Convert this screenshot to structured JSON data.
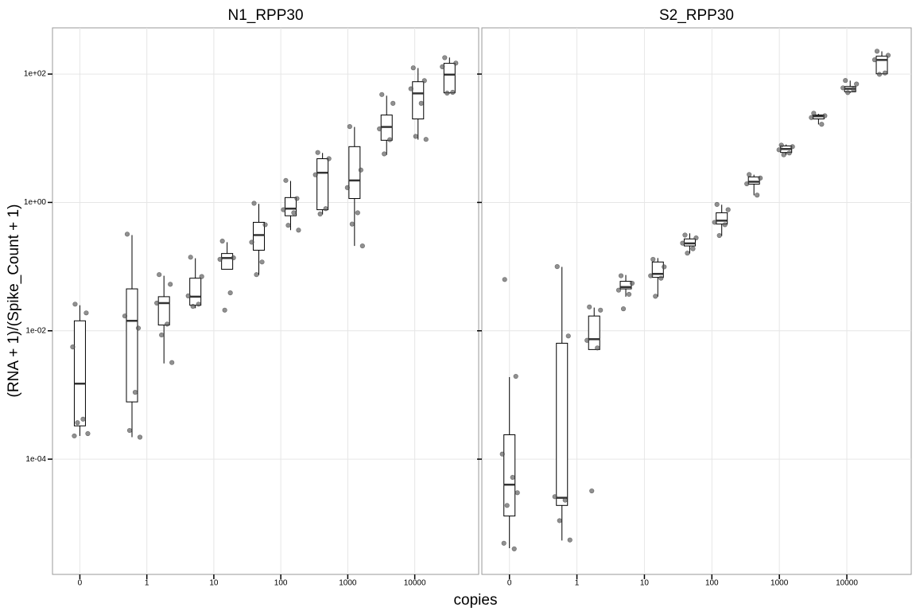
{
  "xlabel": "copies",
  "ylabel": "(RNA + 1)/(Spike_Count + 1)",
  "chart_data": [
    {
      "type": "box",
      "title": "N1_RPP30",
      "xlog": true,
      "ylog": true,
      "grid": true,
      "box_color": "#000000",
      "point_color": "#555555",
      "xlim": [
        0.039,
        90000
      ],
      "ylim": [
        1.6e-06,
        525
      ],
      "xticks": [
        {
          "value": 0.1,
          "label": "0"
        },
        1,
        10,
        100,
        1000,
        10000
      ],
      "yticks": [
        {
          "value": 0.0001,
          "label": "1e-04"
        },
        {
          "value": 0.01,
          "label": "1e-02"
        },
        {
          "value": 1,
          "label": "1e+00"
        },
        {
          "value": 100,
          "label": "1e+02"
        }
      ],
      "groups": [
        {
          "x": 0.1,
          "whisker_low": 0.00023,
          "q1": 0.00033,
          "median": 0.0015,
          "q3": 0.0143,
          "whisker_high": 0.025,
          "points": [
            0.026,
            0.019,
            0.0056,
            0.00042,
            0.00037,
            0.00025,
            0.00023
          ]
        },
        {
          "x": 0.6,
          "whisker_low": 0.00022,
          "q1": 0.00078,
          "median": 0.0143,
          "q3": 0.045,
          "whisker_high": 0.31,
          "points": [
            0.32,
            0.011,
            0.017,
            0.0011,
            0.00028,
            0.00022
          ]
        },
        {
          "x": 1.8,
          "whisker_low": 0.0031,
          "q1": 0.0123,
          "median": 0.027,
          "q3": 0.034,
          "whisker_high": 0.072,
          "points": [
            0.075,
            0.053,
            0.027,
            0.0127,
            0.0086,
            0.0032
          ]
        },
        {
          "x": 5.3,
          "whisker_low": 0.0225,
          "q1": 0.025,
          "median": 0.034,
          "q3": 0.066,
          "whisker_high": 0.135,
          "points": [
            0.14,
            0.07,
            0.035,
            0.026,
            0.024
          ]
        },
        {
          "x": 15.8,
          "whisker_low": 0.091,
          "q1": 0.091,
          "median": 0.136,
          "q3": 0.16,
          "whisker_high": 0.24,
          "points": [
            0.25,
            0.137,
            0.13,
            0.039,
            0.021
          ]
        },
        {
          "x": 47,
          "whisker_low": 0.074,
          "q1": 0.18,
          "median": 0.31,
          "q3": 0.49,
          "whisker_high": 0.95,
          "points": [
            0.97,
            0.45,
            0.24,
            0.118,
            0.075
          ]
        },
        {
          "x": 140,
          "whisker_low": 0.37,
          "q1": 0.62,
          "median": 0.8,
          "q3": 1.19,
          "whisker_high": 2.16,
          "points": [
            2.2,
            1.15,
            0.77,
            0.69,
            0.44,
            0.37
          ]
        },
        {
          "x": 420,
          "whisker_low": 0.65,
          "q1": 0.77,
          "median": 2.9,
          "q3": 4.8,
          "whisker_high": 5.9,
          "points": [
            6,
            4.8,
            2.7,
            0.8,
            0.66
          ]
        },
        {
          "x": 1260,
          "whisker_low": 0.21,
          "q1": 1.15,
          "median": 2.2,
          "q3": 7.4,
          "whisker_high": 15,
          "points": [
            15.2,
            3.2,
            1.7,
            0.69,
            0.46,
            0.21
          ]
        },
        {
          "x": 3800,
          "whisker_low": 5.5,
          "q1": 9.3,
          "median": 15,
          "q3": 23,
          "whisker_high": 46,
          "points": [
            48,
            35,
            14,
            9.5,
            5.7
          ]
        },
        {
          "x": 11200,
          "whisker_low": 9.5,
          "q1": 20,
          "median": 50,
          "q3": 76,
          "whisker_high": 124,
          "points": [
            125,
            79,
            59,
            35,
            10.7,
            9.6
          ]
        },
        {
          "x": 33000,
          "whisker_low": 50,
          "q1": 51,
          "median": 98,
          "q3": 147,
          "whisker_high": 181,
          "points": [
            180,
            148,
            130,
            52,
            50.5
          ]
        }
      ]
    },
    {
      "type": "box",
      "title": "S2_RPP30",
      "xlog": true,
      "ylog": true,
      "grid": true,
      "box_color": "#000000",
      "point_color": "#555555",
      "xlim": [
        0.039,
        90000
      ],
      "ylim": [
        1.6e-06,
        525
      ],
      "xticks": [
        {
          "value": 0.1,
          "label": "0"
        },
        1,
        10,
        100,
        1000,
        10000
      ],
      "yticks": [
        {
          "value": 0.0001,
          "label": "1e-04"
        },
        {
          "value": 0.01,
          "label": "1e-02"
        },
        {
          "value": 1,
          "label": "1e+00"
        },
        {
          "value": 100,
          "label": "1e+02"
        }
      ],
      "groups": [
        {
          "x": 0.1,
          "whisker_low": 4.1e-06,
          "q1": 1.3e-05,
          "median": 4e-05,
          "q3": 0.00024,
          "whisker_high": 0.0019,
          "points": [
            0.063,
            0.00195,
            0.00012,
            5.2e-05,
            1.9e-05,
            3e-05,
            4.9e-06,
            4e-06
          ]
        },
        {
          "x": 0.6,
          "whisker_low": 5.4e-06,
          "q1": 1.9e-05,
          "median": 2.5e-05,
          "q3": 0.0064,
          "whisker_high": 0.099,
          "points": [
            0.1,
            0.0083,
            2.6e-05,
            2.3e-05,
            1.1e-05,
            5.5e-06
          ]
        },
        {
          "x": 1.8,
          "whisker_low": 0.0051,
          "q1": 0.0051,
          "median": 0.0074,
          "q3": 0.017,
          "whisker_high": 0.023,
          "points": [
            0.0235,
            0.021,
            0.0071,
            0.0054,
            3.2e-05
          ]
        },
        {
          "x": 5.3,
          "whisker_low": 0.034,
          "q1": 0.045,
          "median": 0.048,
          "q3": 0.059,
          "whisker_high": 0.074,
          "points": [
            0.072,
            0.055,
            0.043,
            0.037,
            0.022
          ]
        },
        {
          "x": 15.8,
          "whisker_low": 0.034,
          "q1": 0.068,
          "median": 0.077,
          "q3": 0.118,
          "whisker_high": 0.136,
          "points": [
            0.13,
            0.099,
            0.072,
            0.066,
            0.0345
          ]
        },
        {
          "x": 47,
          "whisker_low": 0.16,
          "q1": 0.21,
          "median": 0.23,
          "q3": 0.27,
          "whisker_high": 0.33,
          "points": [
            0.31,
            0.28,
            0.232,
            0.19,
            0.162
          ]
        },
        {
          "x": 140,
          "whisker_low": 0.3,
          "q1": 0.46,
          "median": 0.52,
          "q3": 0.69,
          "whisker_high": 0.92,
          "points": [
            0.93,
            0.77,
            0.49,
            0.45,
            0.305
          ]
        },
        {
          "x": 420,
          "whisker_low": 1.29,
          "q1": 1.93,
          "median": 2.1,
          "q3": 2.5,
          "whisker_high": 2.7,
          "points": [
            2.72,
            2.4,
            1.95,
            1.3
          ]
        },
        {
          "x": 1260,
          "whisker_low": 5.5,
          "q1": 6,
          "median": 6.8,
          "q3": 7.6,
          "whisker_high": 8,
          "points": [
            7.8,
            7.4,
            6.6,
            5.9,
            5.52
          ]
        },
        {
          "x": 3800,
          "whisker_low": 16.4,
          "q1": 20,
          "median": 22,
          "q3": 23,
          "whisker_high": 24,
          "points": [
            24.5,
            22.4,
            21,
            16.5
          ]
        },
        {
          "x": 11200,
          "whisker_low": 51,
          "q1": 53,
          "median": 59,
          "q3": 64,
          "whisker_high": 79,
          "points": [
            79.5,
            70,
            61,
            58,
            51.5
          ]
        },
        {
          "x": 33000,
          "whisker_low": 101,
          "q1": 101,
          "median": 166,
          "q3": 190,
          "whisker_high": 226,
          "points": [
            227,
            196,
            167,
            104,
            99
          ]
        }
      ]
    }
  ]
}
